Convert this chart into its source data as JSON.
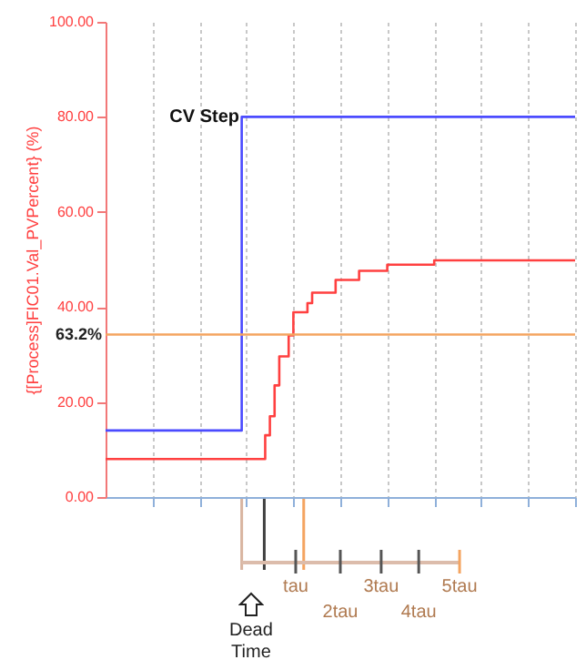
{
  "chart_data": {
    "type": "step",
    "ylabel": "{[Process]FIC01.Val_PVPercent} (%)",
    "categories": [
      null,
      null,
      null,
      null,
      null,
      null,
      null,
      null,
      null,
      null,
      null,
      null,
      null,
      null,
      null,
      null,
      null,
      null,
      null,
      null,
      null,
      null,
      null,
      null,
      null,
      null,
      null,
      null,
      null,
      null,
      null,
      null,
      null,
      null,
      null,
      null,
      null,
      null,
      null,
      null,
      null,
      null,
      null,
      null,
      null,
      null,
      null,
      null,
      null,
      null,
      null,
      null,
      null,
      null,
      null,
      null,
      null,
      null,
      null,
      null,
      null,
      null,
      null,
      null,
      null,
      null,
      null,
      null,
      null,
      null,
      null,
      null,
      null,
      null,
      null,
      null,
      null,
      null,
      null,
      null,
      null,
      null,
      null,
      null,
      null,
      null,
      null,
      null,
      null,
      null,
      null,
      null,
      null,
      null,
      null,
      null,
      null,
      null,
      null,
      null,
      null
    ],
    "ylim": [
      0,
      100
    ],
    "yticks": [
      {
        "value": 0,
        "label": "0.00"
      },
      {
        "value": 20,
        "label": "20.00"
      },
      {
        "value": 40,
        "label": "40.00"
      },
      {
        "value": 60,
        "label": "60.00"
      },
      {
        "value": 80,
        "label": "80.00"
      },
      {
        "value": 100,
        "label": "100.00"
      }
    ],
    "tick_labels": "y",
    "grid": "x",
    "series": [
      {
        "color": "#4b4bff",
        "values": [
          14,
          14,
          14,
          14,
          14,
          14,
          14,
          14,
          14,
          14,
          14,
          14,
          14,
          14,
          14,
          14,
          14,
          14,
          14,
          14,
          14,
          14,
          14,
          14,
          14,
          14,
          14,
          14,
          14,
          80,
          80,
          80,
          80,
          80,
          80,
          80,
          80,
          80,
          80,
          80,
          80,
          80,
          80,
          80,
          80,
          80,
          80,
          80,
          80,
          80,
          80,
          80,
          80,
          80,
          80,
          80,
          80,
          80,
          80,
          80,
          80,
          80,
          80,
          80,
          80,
          80,
          80,
          80,
          80,
          80,
          80,
          80,
          80,
          80,
          80,
          80,
          80,
          80,
          80,
          80,
          80,
          80,
          80,
          80,
          80,
          80,
          80,
          80,
          80,
          80,
          80,
          80,
          80,
          80,
          80,
          80,
          80,
          80,
          80,
          80,
          80
        ]
      },
      {
        "color": "#ff4040",
        "values": [
          8,
          8,
          8,
          8,
          8,
          8,
          8,
          8,
          8,
          8,
          8,
          8,
          8,
          8,
          8,
          8,
          8,
          8,
          8,
          8,
          8,
          8,
          8,
          8,
          8,
          8,
          8,
          8,
          8,
          8,
          8,
          8,
          8,
          8,
          13,
          17,
          23.5,
          29.6,
          29.6,
          34,
          38.9,
          38.9,
          38.9,
          40.8,
          43,
          43,
          43,
          43,
          43,
          45.7,
          45.7,
          45.7,
          45.7,
          45.7,
          47.6,
          47.6,
          47.6,
          47.6,
          47.6,
          47.6,
          48.9,
          48.9,
          48.9,
          48.9,
          48.9,
          48.9,
          48.9,
          48.9,
          48.9,
          48.9,
          49.8,
          49.8,
          49.8,
          49.8,
          49.8,
          49.8,
          49.8,
          49.8,
          49.8,
          49.8,
          49.8,
          49.8,
          49.8,
          49.8,
          49.8,
          49.8,
          49.8,
          49.8,
          49.8,
          49.8,
          49.8,
          49.8,
          49.8,
          49.8,
          49.8,
          49.8,
          49.8,
          49.8,
          49.8,
          49.8,
          49.8
        ]
      }
    ],
    "ref_lines": [
      {
        "axis": "y",
        "value": 34.2,
        "color": "#f4a460"
      }
    ],
    "annotations": [
      "CV Step",
      "63.2%",
      "Dead\nTime",
      "tau",
      "2tau",
      "3tau",
      "4tau",
      "5tau"
    ]
  }
}
